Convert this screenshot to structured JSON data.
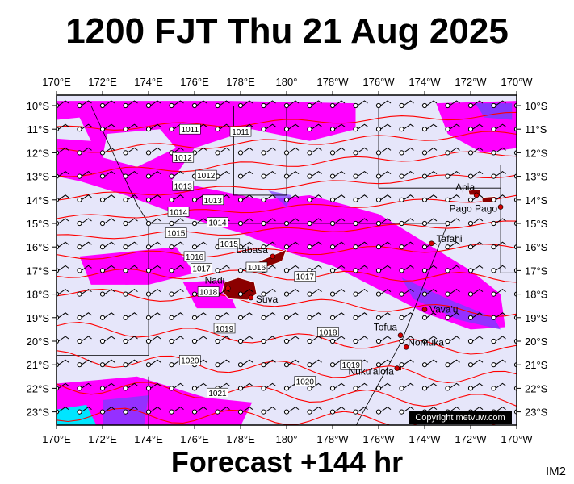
{
  "title": "1200 FJT Thu 21 Aug 2025",
  "footer": "Forecast +144 hr",
  "code": "IM2",
  "copyright": "Copyright metvuw.com",
  "lon_ticks": [
    "170°E",
    "172°E",
    "174°E",
    "176°E",
    "178°E",
    "180°",
    "178°W",
    "176°W",
    "174°W",
    "172°W",
    "170°W"
  ],
  "lat_ticks": [
    "10°S",
    "11°S",
    "12°S",
    "13°S",
    "14°S",
    "15°S",
    "16°S",
    "17°S",
    "18°S",
    "19°S",
    "20°S",
    "21°S",
    "22°S",
    "23°S"
  ],
  "places": [
    {
      "name": "Apia",
      "lon": -171.75,
      "lat": -13.8
    },
    {
      "name": "Pago Pago",
      "lon": -170.7,
      "lat": -14.3
    },
    {
      "name": "Tafahi",
      "lon": -173.7,
      "lat": -15.85
    },
    {
      "name": "Labasa",
      "lon": 179.4,
      "lat": -16.4
    },
    {
      "name": "Nadi",
      "lon": 177.45,
      "lat": -17.75
    },
    {
      "name": "Suva",
      "lon": 178.45,
      "lat": -18.15
    },
    {
      "name": "Vava'u",
      "lon": -174.0,
      "lat": -18.65
    },
    {
      "name": "Tofua",
      "lon": -175.05,
      "lat": -19.75
    },
    {
      "name": "Nomuka",
      "lon": -174.8,
      "lat": -20.25
    },
    {
      "name": "Nuku'alofa",
      "lon": -175.2,
      "lat": -21.15
    }
  ],
  "place_labels": {
    "Apia": "Apia",
    "Pago Pago": "Pago Pago",
    "Tafahi": "Tafahi",
    "Labasa": "Labasa",
    "Nadi": "Nadi",
    "Suva": "Suva",
    "Vava'u": "Vava'u",
    "Tofua": "Tofua",
    "Nomuka": "Nomuka",
    "Nuku'alofa": "Nuku'alofa"
  },
  "isobars": [
    {
      "label": "1011",
      "lon": 175.8,
      "lat": -11.0
    },
    {
      "label": "1011",
      "lon": 178.0,
      "lat": -11.1
    },
    {
      "label": "1012",
      "lon": 175.5,
      "lat": -12.2
    },
    {
      "label": "1012",
      "lon": 176.5,
      "lat": -12.95
    },
    {
      "label": "1013",
      "lon": 175.5,
      "lat": -13.4
    },
    {
      "label": "1013",
      "lon": 176.8,
      "lat": -14.0
    },
    {
      "label": "1014",
      "lon": 175.3,
      "lat": -14.5
    },
    {
      "label": "1014",
      "lon": 177.0,
      "lat": -14.95
    },
    {
      "label": "1015",
      "lon": 175.2,
      "lat": -15.4
    },
    {
      "label": "1015",
      "lon": 177.5,
      "lat": -15.85
    },
    {
      "label": "1016",
      "lon": 176.0,
      "lat": -16.4
    },
    {
      "label": "1016",
      "lon": 178.7,
      "lat": -16.85
    },
    {
      "label": "1017",
      "lon": 176.3,
      "lat": -16.9
    },
    {
      "label": "1017",
      "lon": -179.2,
      "lat": -17.25
    },
    {
      "label": "1018",
      "lon": 176.6,
      "lat": -17.9
    },
    {
      "label": "1018",
      "lon": -178.2,
      "lat": -19.6
    },
    {
      "label": "1019",
      "lon": 177.3,
      "lat": -19.45
    },
    {
      "label": "1019",
      "lon": -177.2,
      "lat": -21.0
    },
    {
      "label": "1020",
      "lon": 175.8,
      "lat": -20.8
    },
    {
      "label": "1020",
      "lon": -179.2,
      "lat": -21.7
    },
    {
      "label": "1021",
      "lon": 177.0,
      "lat": -22.2
    }
  ],
  "colors": {
    "ocean": "#e6e6fa",
    "precip_light": "#ff00ff",
    "precip_heavy": "#7a3cff",
    "precip_extreme": "#00e5ff",
    "isobar": "#ff0000",
    "land": "#8b0000",
    "boundary": "#000000"
  },
  "wind_symbols": "wind-barb-icon"
}
